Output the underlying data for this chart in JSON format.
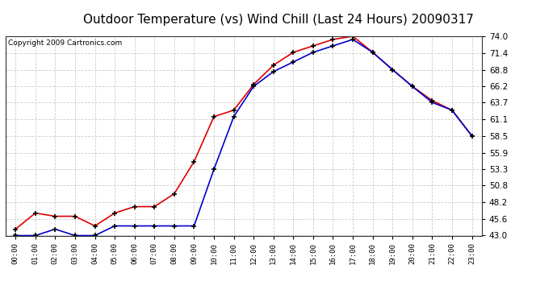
{
  "title": "Outdoor Temperature (vs) Wind Chill (Last 24 Hours) 20090317",
  "copyright": "Copyright 2009 Cartronics.com",
  "x_labels": [
    "00:00",
    "01:00",
    "02:00",
    "03:00",
    "04:00",
    "05:00",
    "06:00",
    "07:00",
    "08:00",
    "09:00",
    "10:00",
    "11:00",
    "12:00",
    "13:00",
    "14:00",
    "15:00",
    "16:00",
    "17:00",
    "18:00",
    "19:00",
    "20:00",
    "21:00",
    "22:00",
    "23:00"
  ],
  "temp_red": [
    44.0,
    46.5,
    46.0,
    46.0,
    44.5,
    46.5,
    47.5,
    47.5,
    49.5,
    54.5,
    61.5,
    62.5,
    66.5,
    69.5,
    71.5,
    72.5,
    73.5,
    74.0,
    71.5,
    68.8,
    66.2,
    64.0,
    62.5,
    58.5
  ],
  "wind_blue": [
    43.0,
    43.0,
    44.0,
    43.0,
    43.0,
    44.5,
    44.5,
    44.5,
    44.5,
    44.5,
    53.3,
    61.5,
    66.2,
    68.5,
    70.0,
    71.5,
    72.5,
    73.5,
    71.5,
    68.8,
    66.2,
    63.7,
    62.5,
    58.5
  ],
  "ylim": [
    43.0,
    74.0
  ],
  "yticks": [
    43.0,
    45.6,
    48.2,
    50.8,
    53.3,
    55.9,
    58.5,
    61.1,
    63.7,
    66.2,
    68.8,
    71.4,
    74.0
  ],
  "red_color": "#dd0000",
  "blue_color": "#0000cc",
  "bg_color": "#ffffff",
  "grid_color": "#cccccc",
  "title_fontsize": 11,
  "copyright_fontsize": 6.5
}
